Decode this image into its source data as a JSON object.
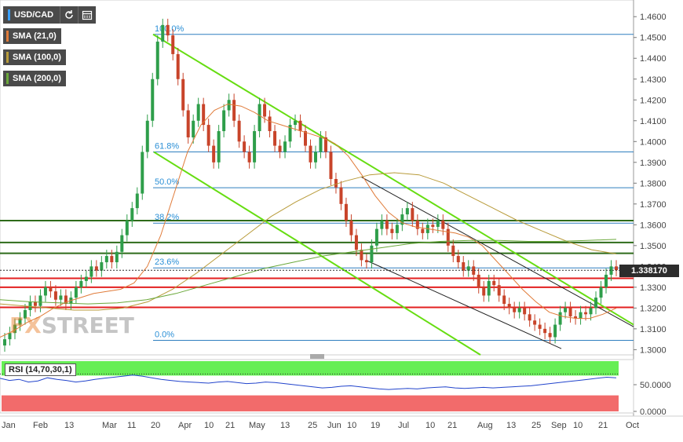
{
  "pair": {
    "symbol": "USD/CAD",
    "refresh_icon": "refresh-icon",
    "calendar_icon": "calendar-icon"
  },
  "legend": [
    {
      "label": "SMA (21,0)",
      "color": "#e07b39"
    },
    {
      "label": "SMA (100,0)",
      "color": "#b89b3a"
    },
    {
      "label": "SMA (200,0)",
      "color": "#6aa83a"
    }
  ],
  "watermark": {
    "prefix": "FX",
    "suffix": "STREET"
  },
  "current_price": "1.338170",
  "rsi": {
    "label": "RSI (14,70,30,1)",
    "levels": [
      "50.0000",
      "0.0000"
    ]
  },
  "colors": {
    "fib_line": "#2f7fbf",
    "fib_text": "#2a8fd6",
    "support_red": "#e32020",
    "green_level": "#2e6b1a",
    "channel_green": "#66dd11",
    "channel_black": "#222222",
    "candle_up": "#2e9e4a",
    "candle_down": "#c8442a",
    "rsi_line": "#2244cc",
    "rsi_overbought": "#66ee55",
    "rsi_oversold": "#f26b6b"
  },
  "chart_data": {
    "type": "candlestick",
    "x_ticks": [
      "Jan",
      "Feb",
      "13",
      "Mar",
      "11",
      "20",
      "Apr",
      "10",
      "21",
      "May",
      "13",
      "25",
      "Jun",
      "10",
      "19",
      "Jul",
      "10",
      "21",
      "Aug",
      "13",
      "25",
      "Sep",
      "10",
      "21",
      "Oct"
    ],
    "y_ticks": [
      "1.4600",
      "1.4500",
      "1.4400",
      "1.4300",
      "1.4200",
      "1.4100",
      "1.4000",
      "1.3900",
      "1.3800",
      "1.3700",
      "1.3600",
      "1.3500",
      "1.3400",
      "1.3300",
      "1.3200",
      "1.3100",
      "1.3000"
    ],
    "ylim": [
      1.2975,
      1.4665
    ],
    "fibonacci": [
      {
        "label": "100.0%",
        "value": 1.4515
      },
      {
        "label": "61.8%",
        "value": 1.395
      },
      {
        "label": "50.0%",
        "value": 1.3778
      },
      {
        "label": "38.2%",
        "value": 1.3608
      },
      {
        "label": "23.6%",
        "value": 1.3393
      },
      {
        "label": "0.0%",
        "value": 1.3045
      }
    ],
    "green_levels": [
      1.362,
      1.3515,
      1.3463
    ],
    "red_levels": [
      1.3343,
      1.33,
      1.3203
    ],
    "close_series": [
      1.305,
      1.308,
      1.312,
      1.315,
      1.319,
      1.323,
      1.321,
      1.326,
      1.33,
      1.328,
      1.324,
      1.326,
      1.322,
      1.325,
      1.33,
      1.333,
      1.335,
      1.34,
      1.338,
      1.342,
      1.345,
      1.342,
      1.347,
      1.355,
      1.362,
      1.368,
      1.375,
      1.395,
      1.41,
      1.43,
      1.448,
      1.456,
      1.451,
      1.442,
      1.43,
      1.415,
      1.402,
      1.41,
      1.418,
      1.408,
      1.398,
      1.39,
      1.405,
      1.415,
      1.42,
      1.41,
      1.4,
      1.395,
      1.39,
      1.405,
      1.418,
      1.412,
      1.405,
      1.398,
      1.395,
      1.4,
      1.408,
      1.41,
      1.405,
      1.398,
      1.39,
      1.395,
      1.402,
      1.395,
      1.382,
      1.378,
      1.37,
      1.362,
      1.355,
      1.348,
      1.343,
      1.342,
      1.35,
      1.358,
      1.362,
      1.358,
      1.356,
      1.36,
      1.365,
      1.368,
      1.362,
      1.358,
      1.356,
      1.36,
      1.359,
      1.362,
      1.358,
      1.35,
      1.345,
      1.342,
      1.338,
      1.34,
      1.336,
      1.33,
      1.326,
      1.333,
      1.331,
      1.326,
      1.322,
      1.32,
      1.318,
      1.32,
      1.317,
      1.314,
      1.312,
      1.31,
      1.308,
      1.306,
      1.312,
      1.318,
      1.32,
      1.316,
      1.315,
      1.318,
      1.317,
      1.32,
      1.325,
      1.33,
      1.336,
      1.34,
      1.3382
    ],
    "sma21": [
      1.306,
      1.309,
      1.313,
      1.316,
      1.32,
      1.323,
      1.325,
      1.327,
      1.328,
      1.329,
      1.332,
      1.34,
      1.355,
      1.375,
      1.395,
      1.408,
      1.415,
      1.418,
      1.417,
      1.414,
      1.41,
      1.408,
      1.406,
      1.404,
      1.402,
      1.399,
      1.393,
      1.384,
      1.374,
      1.366,
      1.361,
      1.359,
      1.358,
      1.357,
      1.356,
      1.354,
      1.35,
      1.343,
      1.336,
      1.329,
      1.323,
      1.318,
      1.316,
      1.315,
      1.315,
      1.317,
      1.32
    ],
    "sma100": [
      1.322,
      1.321,
      1.32,
      1.319,
      1.319,
      1.32,
      1.323,
      1.329,
      1.337,
      1.346,
      1.355,
      1.364,
      1.371,
      1.377,
      1.381,
      1.384,
      1.385,
      1.384,
      1.38,
      1.374,
      1.368,
      1.362,
      1.357,
      1.352,
      1.348,
      1.346
    ],
    "sma200": [
      1.324,
      1.323,
      1.3225,
      1.322,
      1.3225,
      1.324,
      1.327,
      1.331,
      1.335,
      1.339,
      1.342,
      1.345,
      1.347,
      1.349,
      1.351,
      1.352,
      1.3525,
      1.3525,
      1.352,
      1.352,
      1.3525,
      1.353
    ],
    "rsi_values": [
      62,
      58,
      60,
      55,
      57,
      63,
      60,
      58,
      55,
      57,
      60,
      62,
      64,
      66,
      68,
      66,
      63,
      60,
      58,
      56,
      55,
      54,
      53,
      55,
      56,
      54,
      52,
      53,
      55,
      54,
      52,
      50,
      48,
      46,
      44,
      45,
      47,
      48,
      46,
      44,
      42,
      41,
      42,
      43,
      42,
      44,
      45,
      46,
      44,
      43,
      44,
      45,
      44,
      45,
      46,
      47,
      48,
      50,
      52,
      54,
      56,
      58,
      60,
      62,
      64,
      63
    ]
  }
}
